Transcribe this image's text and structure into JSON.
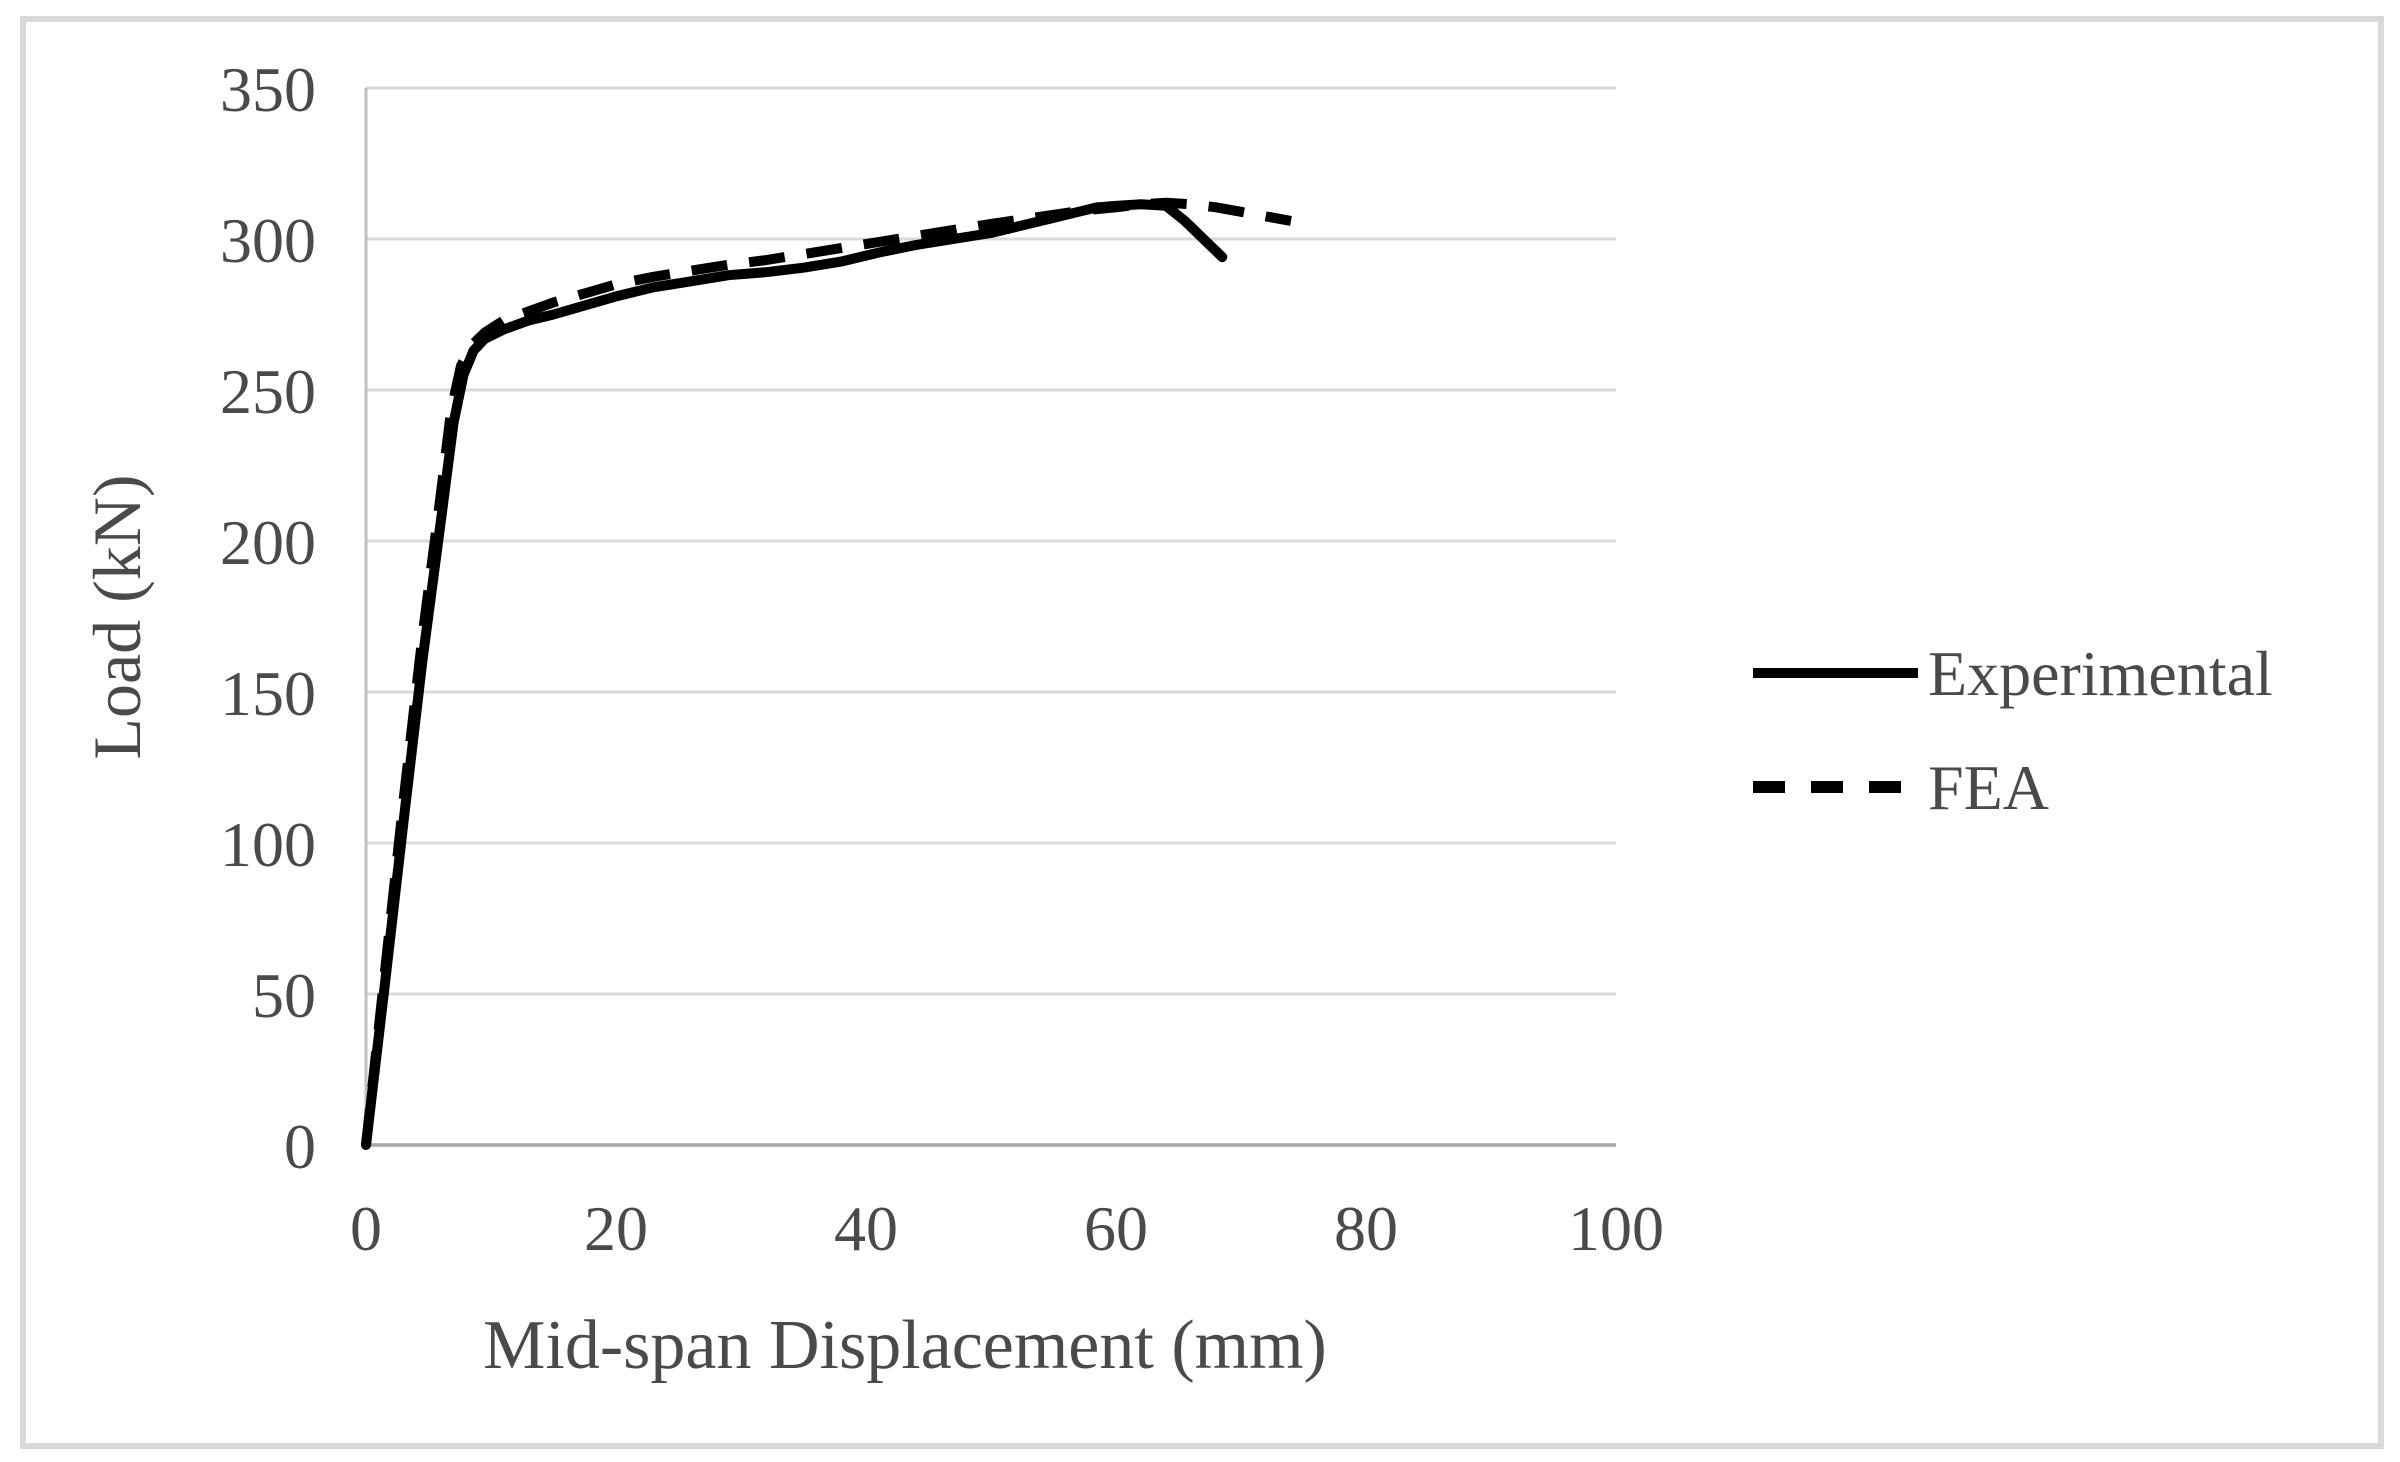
{
  "chart_data": {
    "type": "line",
    "title": "",
    "xlabel": "Mid-span Displacement (mm)",
    "ylabel": "Load (kN)",
    "xlim": [
      0,
      100
    ],
    "ylim": [
      0,
      350
    ],
    "x_ticks": [
      0,
      20,
      40,
      60,
      80,
      100
    ],
    "y_ticks": [
      0,
      50,
      100,
      150,
      200,
      250,
      300,
      350
    ],
    "grid": "horizontal-only",
    "legend_position": "right-middle",
    "series": [
      {
        "name": "Experimental",
        "style": "solid",
        "color": "#000000",
        "points": [
          [
            0,
            0
          ],
          [
            1.5,
            53
          ],
          [
            3,
            107
          ],
          [
            4.5,
            160
          ],
          [
            6,
            207
          ],
          [
            7,
            239
          ],
          [
            7.8,
            255
          ],
          [
            8.6,
            263
          ],
          [
            9.5,
            267
          ],
          [
            11,
            270
          ],
          [
            13,
            273
          ],
          [
            15,
            275
          ],
          [
            17.5,
            278
          ],
          [
            20,
            281
          ],
          [
            23,
            284
          ],
          [
            26,
            286
          ],
          [
            29,
            288
          ],
          [
            32,
            289
          ],
          [
            35,
            290.5
          ],
          [
            38,
            292.5
          ],
          [
            41,
            295.5
          ],
          [
            44,
            298
          ],
          [
            47,
            300
          ],
          [
            50,
            302
          ],
          [
            52.5,
            304.5
          ],
          [
            55,
            307
          ],
          [
            57,
            309
          ],
          [
            58.5,
            310.5
          ],
          [
            60,
            311
          ],
          [
            62,
            311.5
          ],
          [
            64,
            311
          ],
          [
            65.5,
            306
          ],
          [
            67,
            300
          ],
          [
            68.5,
            294
          ]
        ]
      },
      {
        "name": "FEA",
        "style": "dashed",
        "color": "#000000",
        "points": [
          [
            0,
            0
          ],
          [
            1.5,
            57
          ],
          [
            3,
            114
          ],
          [
            4.5,
            168
          ],
          [
            6,
            216
          ],
          [
            6.8,
            243
          ],
          [
            7.6,
            258
          ],
          [
            8.5,
            265
          ],
          [
            9.5,
            269
          ],
          [
            11,
            273
          ],
          [
            13,
            276
          ],
          [
            15,
            279
          ],
          [
            17.5,
            282
          ],
          [
            20,
            285
          ],
          [
            23,
            287.5
          ],
          [
            26,
            289.5
          ],
          [
            29,
            291.5
          ],
          [
            32,
            293
          ],
          [
            35,
            295
          ],
          [
            38,
            297
          ],
          [
            41,
            299
          ],
          [
            44,
            301
          ],
          [
            47,
            303
          ],
          [
            50,
            305
          ],
          [
            52.5,
            306.5
          ],
          [
            55,
            308
          ],
          [
            57.5,
            309.5
          ],
          [
            60,
            310.5
          ],
          [
            62,
            311.5
          ],
          [
            64,
            312
          ],
          [
            66,
            311.5
          ],
          [
            68,
            310.5
          ],
          [
            70,
            309
          ],
          [
            72,
            307.5
          ],
          [
            74,
            306
          ]
        ]
      }
    ]
  },
  "colors": {
    "background": "#ffffff",
    "frame_border": "#d9d9d9",
    "gridline": "#d9d9d9",
    "x_axis_line": "#a6a6a6",
    "y_axis_line": "#bfbfbf",
    "curve": "#000000",
    "text": "#4a4a4a"
  }
}
